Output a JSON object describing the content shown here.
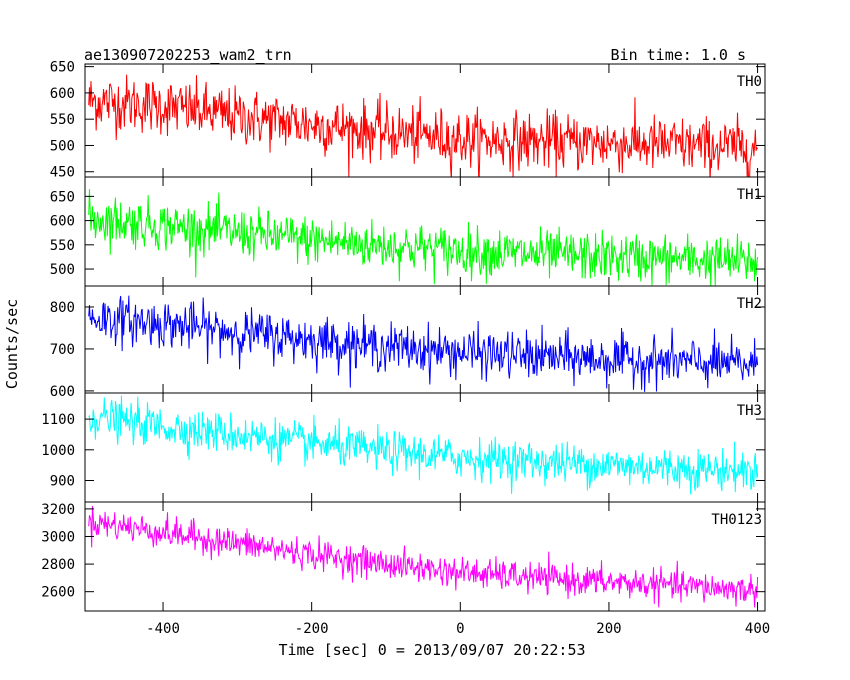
{
  "header": {
    "title": "ae130907202253_wam2_trn",
    "bin_time": "Bin time: 1.0 s"
  },
  "chart_data": {
    "type": "line",
    "xlabel": "Time [sec] 0 = 2013/09/07 20:22:53",
    "ylabel": "Counts/sec",
    "xlim": [
      -505,
      410
    ],
    "xticks": [
      -400,
      -200,
      0,
      200,
      400
    ],
    "x_step": 1.0,
    "x_start": -500,
    "x_end": 400,
    "panels": [
      {
        "name": "TH0",
        "color": "#ff0000",
        "ylim": [
          440,
          655
        ],
        "yticks": [
          450,
          500,
          550,
          600,
          650
        ],
        "trend": [
          [
            -500,
            585
          ],
          [
            -400,
            575
          ],
          [
            -300,
            555
          ],
          [
            -200,
            540
          ],
          [
            -100,
            525
          ],
          [
            0,
            512
          ],
          [
            100,
            508
          ],
          [
            200,
            505
          ],
          [
            300,
            500
          ],
          [
            400,
            495
          ]
        ],
        "noise_sd": 27
      },
      {
        "name": "TH1",
        "color": "#00ff00",
        "ylim": [
          465,
          690
        ],
        "yticks": [
          500,
          550,
          600,
          650
        ],
        "trend": [
          [
            -500,
            605
          ],
          [
            -400,
            590
          ],
          [
            -300,
            575
          ],
          [
            -200,
            560
          ],
          [
            -100,
            548
          ],
          [
            0,
            538
          ],
          [
            100,
            530
          ],
          [
            200,
            525
          ],
          [
            300,
            520
          ],
          [
            400,
            515
          ]
        ],
        "noise_sd": 25
      },
      {
        "name": "TH2",
        "color": "#0000ff",
        "ylim": [
          595,
          850
        ],
        "yticks": [
          600,
          700,
          800
        ],
        "trend": [
          [
            -500,
            775
          ],
          [
            -400,
            760
          ],
          [
            -300,
            740
          ],
          [
            -200,
            722
          ],
          [
            -100,
            705
          ],
          [
            0,
            692
          ],
          [
            100,
            682
          ],
          [
            200,
            675
          ],
          [
            300,
            668
          ],
          [
            400,
            662
          ]
        ],
        "noise_sd": 28
      },
      {
        "name": "TH3",
        "color": "#00ffff",
        "ylim": [
          830,
          1185
        ],
        "yticks": [
          900,
          1000,
          1100
        ],
        "trend": [
          [
            -500,
            1110
          ],
          [
            -400,
            1075
          ],
          [
            -300,
            1050
          ],
          [
            -200,
            1020
          ],
          [
            -100,
            995
          ],
          [
            0,
            975
          ],
          [
            100,
            962
          ],
          [
            200,
            950
          ],
          [
            300,
            940
          ],
          [
            400,
            930
          ]
        ],
        "noise_sd": 33
      },
      {
        "name": "TH0123",
        "color": "#ff00ff",
        "ylim": [
          2460,
          3250
        ],
        "yticks": [
          2600,
          2800,
          3000,
          3200
        ],
        "trend": [
          [
            -500,
            3110
          ],
          [
            -400,
            3030
          ],
          [
            -300,
            2950
          ],
          [
            -200,
            2870
          ],
          [
            -100,
            2800
          ],
          [
            0,
            2740
          ],
          [
            100,
            2700
          ],
          [
            200,
            2670
          ],
          [
            300,
            2640
          ],
          [
            400,
            2610
          ]
        ],
        "noise_sd": 55
      }
    ]
  }
}
